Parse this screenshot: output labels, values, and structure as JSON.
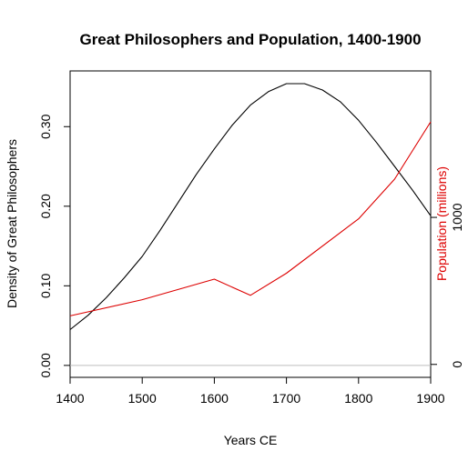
{
  "chart_data": {
    "type": "line",
    "title": "Great Philosophers and Population, 1400-1900",
    "xlabel": "Years CE",
    "ylabel_left": "Density of Great Philosophers",
    "ylabel_right": "Population (millions)",
    "xlim": [
      1400,
      1900
    ],
    "ylim_left": [
      -0.015,
      0.37
    ],
    "ylim_right": [
      -88,
      1996
    ],
    "x_ticks": [
      "1400",
      "1500",
      "1600",
      "1700",
      "1800",
      "1900"
    ],
    "y_ticks_left": [
      "0.00",
      "0.10",
      "0.20",
      "0.30"
    ],
    "y_ticks_right": [
      "0",
      "1000"
    ],
    "baseline_y": 0,
    "grid": false,
    "colors": {
      "density": "#000000",
      "population": "#dd0000",
      "baseline": "#bebebe"
    },
    "series": [
      {
        "axis": "left",
        "x": [
          1400,
          1425,
          1450,
          1475,
          1500,
          1525,
          1550,
          1575,
          1600,
          1625,
          1650,
          1675,
          1700,
          1725,
          1750,
          1775,
          1800,
          1825,
          1850,
          1875,
          1900
        ],
        "values": [
          0.045,
          0.063,
          0.085,
          0.11,
          0.137,
          0.17,
          0.205,
          0.24,
          0.272,
          0.302,
          0.327,
          0.344,
          0.354,
          0.354,
          0.346,
          0.331,
          0.308,
          0.28,
          0.25,
          0.22,
          0.188
        ]
      },
      {
        "axis": "right",
        "x": [
          1400,
          1500,
          1600,
          1650,
          1700,
          1800,
          1850,
          1900
        ],
        "values": [
          330,
          440,
          580,
          470,
          620,
          990,
          1260,
          1650
        ]
      }
    ]
  }
}
